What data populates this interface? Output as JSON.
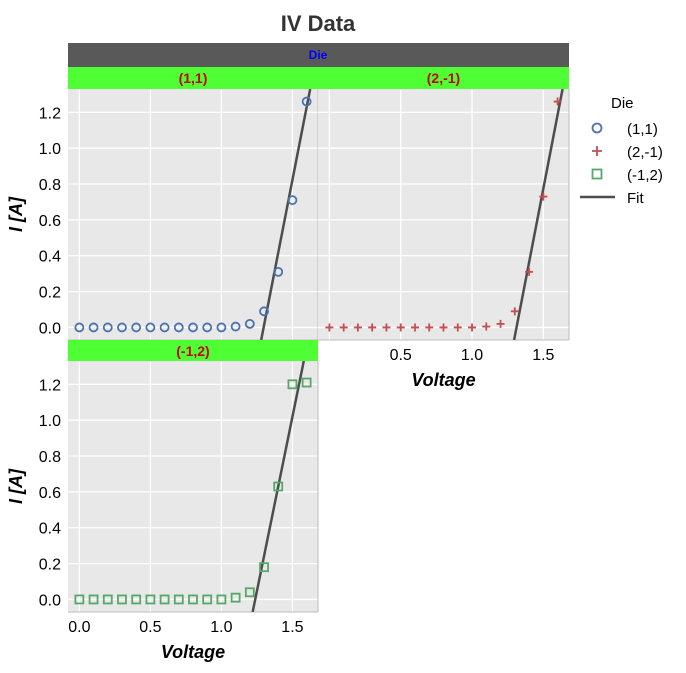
{
  "chart_data": {
    "type": "scatter",
    "title": "IV Data",
    "facet_label": "Die",
    "xlabel": "Voltage",
    "ylabel": "I [A]",
    "xlim": [
      -0.08,
      1.68
    ],
    "ylim": [
      -0.07,
      1.33
    ],
    "x_ticks": [
      {
        "v": 0.0,
        "label": "0.0"
      },
      {
        "v": 0.5,
        "label": "0.5"
      },
      {
        "v": 1.0,
        "label": "1.0"
      },
      {
        "v": 1.5,
        "label": "1.5"
      }
    ],
    "x_ticks_top_right": [
      {
        "v": 0.5,
        "label": "0.5"
      },
      {
        "v": 1.0,
        "label": "1.0"
      },
      {
        "v": 1.5,
        "label": "1.5"
      }
    ],
    "y_ticks": [
      {
        "v": 0.0,
        "label": "0.0"
      },
      {
        "v": 0.2,
        "label": "0.2"
      },
      {
        "v": 0.4,
        "label": "0.4"
      },
      {
        "v": 0.6,
        "label": "0.6"
      },
      {
        "v": 0.8,
        "label": "0.8"
      },
      {
        "v": 1.0,
        "label": "1.0"
      },
      {
        "v": 1.2,
        "label": "1.2"
      }
    ],
    "legend_title": "Die",
    "legend_position": "right",
    "grid": true,
    "colors": {
      "panel_bg": "#e8e8e8",
      "grid": "#ffffff",
      "facet_strip": "#4dff33",
      "facet_text": "#cc0000",
      "header_strip": "#595959",
      "header_text": "#0000ff",
      "fit_line": "#4d4d4d"
    },
    "series": [
      {
        "name": "(1,1)",
        "marker": "circle",
        "color": "#4a72b0",
        "x": [
          0.0,
          0.1,
          0.2,
          0.3,
          0.4,
          0.5,
          0.6,
          0.7,
          0.8,
          0.9,
          1.0,
          1.1,
          1.2,
          1.3,
          1.4,
          1.5,
          1.6
        ],
        "y": [
          0.0,
          0.0,
          0.0,
          0.0,
          0.0,
          0.0,
          0.0,
          0.0,
          0.0,
          0.0,
          0.0,
          0.005,
          0.02,
          0.09,
          0.31,
          0.71,
          1.26
        ],
        "fit": {
          "x": [
            1.28,
            1.625
          ],
          "y": [
            -0.07,
            1.33
          ]
        }
      },
      {
        "name": "(2,-1)",
        "marker": "plus",
        "color": "#c44e52",
        "x": [
          0.0,
          0.1,
          0.2,
          0.3,
          0.4,
          0.5,
          0.6,
          0.7,
          0.8,
          0.9,
          1.0,
          1.1,
          1.2,
          1.3,
          1.4,
          1.5,
          1.6
        ],
        "y": [
          0.0,
          0.0,
          0.0,
          0.0,
          0.0,
          0.0,
          0.0,
          0.0,
          0.0,
          0.0,
          0.0,
          0.005,
          0.02,
          0.09,
          0.31,
          0.73,
          1.26
        ],
        "fit": {
          "x": [
            1.295,
            1.635
          ],
          "y": [
            -0.07,
            1.33
          ]
        }
      },
      {
        "name": "(-1,2)",
        "marker": "square",
        "color": "#55a868",
        "x": [
          0.0,
          0.1,
          0.2,
          0.3,
          0.4,
          0.5,
          0.6,
          0.7,
          0.8,
          0.9,
          1.0,
          1.1,
          1.2,
          1.3,
          1.4,
          1.5,
          1.6
        ],
        "y": [
          0.0,
          0.0,
          0.0,
          0.0,
          0.0,
          0.0,
          0.0,
          0.0,
          0.0,
          0.0,
          0.0,
          0.01,
          0.04,
          0.18,
          0.63,
          1.2,
          1.21
        ],
        "fit": {
          "x": [
            1.22,
            1.58
          ],
          "y": [
            -0.07,
            1.33
          ]
        }
      }
    ],
    "facets": [
      "(1,1)",
      "(2,-1)",
      "(-1,2)"
    ],
    "legend_fit_label": "Fit"
  }
}
